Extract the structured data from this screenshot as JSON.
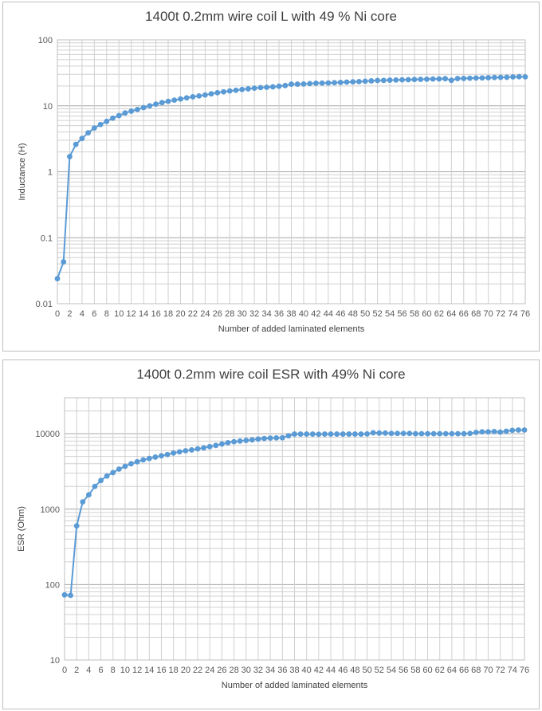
{
  "chart_data": [
    {
      "type": "line",
      "title": "1400t 0.2mm wire coil L with 49 % Ni core",
      "xlabel": "Number of added laminated elements",
      "ylabel": "Inductance (H)",
      "yscale": "log",
      "ylim": [
        0.01,
        100
      ],
      "xlim": [
        0,
        76
      ],
      "grid": true,
      "y_tick_labels": [
        "0.01",
        "0.1",
        "1",
        "10",
        "100"
      ],
      "x_tick_labels": [
        "0",
        "2",
        "4",
        "6",
        "8",
        "10",
        "12",
        "14",
        "16",
        "18",
        "20",
        "22",
        "24",
        "26",
        "28",
        "30",
        "32",
        "34",
        "36",
        "38",
        "40",
        "42",
        "44",
        "46",
        "48",
        "50",
        "52",
        "54",
        "56",
        "58",
        "60",
        "62",
        "64",
        "66",
        "68",
        "70",
        "72",
        "74",
        "76"
      ],
      "series": [
        {
          "color": "#5b9bd5",
          "x": [
            0,
            1,
            2,
            3,
            4,
            5,
            6,
            7,
            8,
            9,
            10,
            11,
            12,
            13,
            14,
            15,
            16,
            17,
            18,
            19,
            20,
            21,
            22,
            23,
            24,
            25,
            26,
            27,
            28,
            29,
            30,
            31,
            32,
            33,
            34,
            35,
            36,
            37,
            38,
            39,
            40,
            41,
            42,
            43,
            44,
            45,
            46,
            47,
            48,
            49,
            50,
            51,
            52,
            53,
            54,
            55,
            56,
            57,
            58,
            59,
            60,
            61,
            62,
            63,
            64,
            65,
            66,
            67,
            68,
            69,
            70,
            71,
            72,
            73,
            74,
            75,
            76
          ],
          "y": [
            0.024,
            0.043,
            1.7,
            2.6,
            3.2,
            3.9,
            4.6,
            5.2,
            5.8,
            6.5,
            7.1,
            7.8,
            8.3,
            8.8,
            9.4,
            10,
            10.6,
            11.2,
            11.7,
            12.2,
            12.7,
            13.2,
            13.7,
            14.1,
            14.6,
            15.2,
            15.8,
            16.3,
            16.8,
            17.2,
            17.7,
            18.1,
            18.5,
            18.9,
            19.1,
            19.4,
            19.8,
            20.3,
            21.3,
            21.3,
            21.4,
            21.7,
            22,
            22.1,
            22.2,
            22.4,
            22.6,
            22.9,
            23.1,
            23.3,
            23.6,
            23.9,
            24.2,
            24.3,
            24.5,
            24.6,
            24.8,
            24.9,
            25.1,
            25.2,
            25.3,
            25.5,
            25.6,
            25.8,
            24.4,
            25.9,
            26,
            26.2,
            26.4,
            26.5,
            26.7,
            26.9,
            27,
            27.1,
            27.4,
            27.6,
            27.5
          ]
        }
      ]
    },
    {
      "type": "line",
      "title": "1400t 0.2mm wire coil ESR with 49% Ni core",
      "xlabel": "Number of added laminated elements",
      "ylabel": "ESR (Ohm)",
      "yscale": "log",
      "ylim": [
        10,
        30000
      ],
      "xlim": [
        0,
        76
      ],
      "grid": true,
      "y_tick_labels": [
        "10",
        "100",
        "1000",
        "10000"
      ],
      "x_tick_labels": [
        "0",
        "2",
        "4",
        "6",
        "8",
        "10",
        "12",
        "14",
        "16",
        "18",
        "20",
        "22",
        "24",
        "26",
        "28",
        "30",
        "32",
        "34",
        "36",
        "38",
        "40",
        "42",
        "44",
        "46",
        "48",
        "50",
        "52",
        "54",
        "56",
        "58",
        "60",
        "62",
        "64",
        "66",
        "68",
        "70",
        "72",
        "74",
        "76"
      ],
      "series": [
        {
          "color": "#5b9bd5",
          "x": [
            0,
            1,
            2,
            3,
            4,
            5,
            6,
            7,
            8,
            9,
            10,
            11,
            12,
            13,
            14,
            15,
            16,
            17,
            18,
            19,
            20,
            21,
            22,
            23,
            24,
            25,
            26,
            27,
            28,
            29,
            30,
            31,
            32,
            33,
            34,
            35,
            36,
            37,
            38,
            39,
            40,
            41,
            42,
            43,
            44,
            45,
            46,
            47,
            48,
            49,
            50,
            51,
            52,
            53,
            54,
            55,
            56,
            57,
            58,
            59,
            60,
            61,
            62,
            63,
            64,
            65,
            66,
            67,
            68,
            69,
            70,
            71,
            72,
            73,
            74,
            75,
            76
          ],
          "y": [
            73,
            72,
            600,
            1250,
            1550,
            2000,
            2400,
            2750,
            3050,
            3400,
            3700,
            4000,
            4250,
            4500,
            4700,
            4900,
            5100,
            5300,
            5550,
            5750,
            5950,
            6100,
            6300,
            6500,
            6750,
            7000,
            7300,
            7600,
            7850,
            8000,
            8150,
            8300,
            8500,
            8650,
            8750,
            8800,
            8850,
            9400,
            9900,
            9900,
            9900,
            9900,
            9850,
            9900,
            9900,
            9900,
            9900,
            9900,
            9900,
            9900,
            9950,
            10300,
            10200,
            10200,
            10100,
            10100,
            10100,
            10100,
            10000,
            10000,
            10000,
            10000,
            10000,
            10000,
            10000,
            10000,
            10000,
            10100,
            10400,
            10600,
            10600,
            10700,
            10500,
            10800,
            11100,
            11200,
            11200
          ]
        }
      ]
    }
  ]
}
